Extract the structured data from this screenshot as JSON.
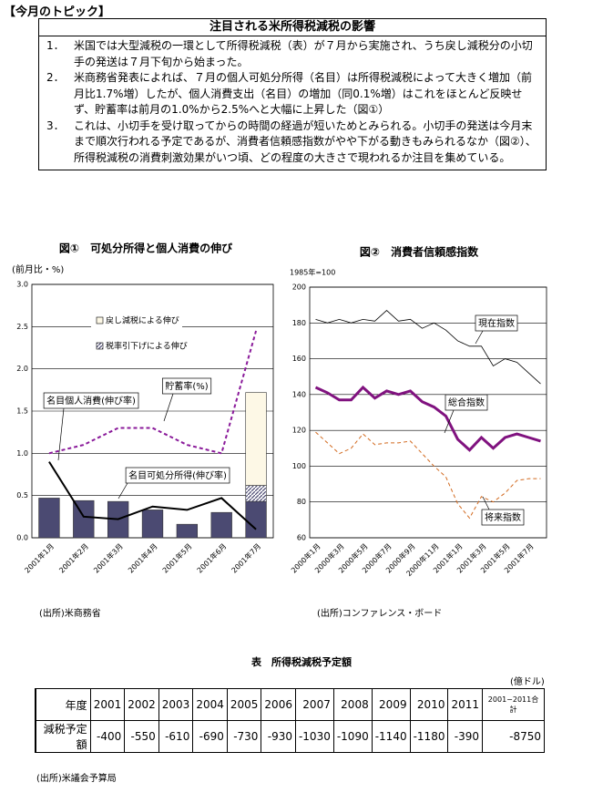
{
  "header": "【今月のトピック】",
  "title": "注目される米所得税減税の影響",
  "points": [
    {
      "number": "1．",
      "text": "米国では大型減税の一環として所得税減税（表）が７月から実施され、うち戻し減税分の小切手の発送は７月下旬から始まった。"
    },
    {
      "number": "2．",
      "text": "米商務省発表によれば、７月の個人可処分所得（名目）は所得税減税によって大きく増加（前月比1.7%増）したが、個人消費支出（名目）の増加（同0.1%増）はこれをほとんど反映せず、貯蓄率は前月の1.0%から2.5%へと大幅に上昇した（図①）"
    },
    {
      "number": "3．",
      "text": "これは、小切手を受け取ってからの時間の経過が短いためとみられる。小切手の発送は今月末まで順次行われる予定であるが、消費者信頼感指数がやや下がる動きもみられるなか（図②）、所得税減税の消費刺激効果がいつ頃、どの程度の大きさで現われるか注目を集めている。"
    }
  ],
  "chart_data": [
    {
      "type": "bar",
      "title": "図①　可処分所得と個人消費の伸び",
      "ylabel": "(前月比・%)",
      "source": "(出所)米商務省",
      "categories": [
        "2001年1月",
        "2001年2月",
        "2001年3月",
        "2001年4月",
        "2001年5月",
        "2001年6月",
        "2001年7月"
      ],
      "series": [
        {
          "name": "名目可処分所得(伸び率)",
          "type": "bar",
          "color": "#4b4a72",
          "values": [
            0.47,
            0.44,
            0.43,
            0.33,
            0.16,
            0.3,
            0.43
          ]
        },
        {
          "name": "税率引下げによる伸び",
          "type": "bar",
          "color": "#4b4a72",
          "hatch": true,
          "values": [
            null,
            null,
            null,
            null,
            null,
            null,
            0.19
          ]
        },
        {
          "name": "戻し減税による伸び",
          "type": "bar",
          "color": "#fdf8e6",
          "values": [
            null,
            null,
            null,
            null,
            null,
            null,
            1.1
          ]
        },
        {
          "name": "名目個人消費(伸び率)",
          "type": "line",
          "color": "#000000",
          "values": [
            0.9,
            0.25,
            0.22,
            0.37,
            0.33,
            0.47,
            0.1
          ]
        },
        {
          "name": "貯蓄率(%)",
          "type": "line",
          "color": "#8a1a9a",
          "dash": true,
          "values": [
            1.0,
            1.1,
            1.3,
            1.3,
            1.1,
            1.0,
            2.45
          ]
        }
      ],
      "ylim": [
        0,
        3
      ],
      "yticks": [
        {
          "value": 0,
          "label": "0.0"
        },
        0.5,
        {
          "value": 1,
          "label": "1.0"
        },
        1.5,
        {
          "value": 2,
          "label": "2.0"
        },
        2.5,
        {
          "value": 3,
          "label": "3.0"
        }
      ],
      "grid": true
    },
    {
      "type": "line",
      "title": "図②　消費者信頼感指数",
      "ylabel": "1985年=100",
      "source": "(出所)コンファレンス・ボード",
      "categories": [
        "2000年1月",
        null,
        "2000年3月",
        null,
        "2000年5月",
        null,
        "2000年7月",
        null,
        "2000年9月",
        null,
        "2000年11月",
        null,
        "2001年1月",
        null,
        "2001年3月",
        null,
        "2001年5月",
        null,
        "2001年7月",
        null
      ],
      "series": [
        {
          "name": "現在指数",
          "type": "line",
          "color": "#000000",
          "width": 0.8,
          "values": [
            182,
            180,
            182,
            180,
            182,
            181,
            187,
            181,
            182,
            177,
            180,
            176,
            170,
            167,
            167,
            156,
            160,
            158,
            152,
            146
          ]
        },
        {
          "name": "総合指数",
          "type": "line",
          "color": "#80127f",
          "width": 3,
          "values": [
            144,
            141,
            137,
            137,
            144,
            138,
            142,
            140,
            142,
            136,
            133,
            128,
            115,
            109,
            116,
            110,
            116,
            118,
            116,
            114
          ]
        },
        {
          "name": "将来指数",
          "type": "line",
          "color": "#d2691e",
          "width": 1,
          "dash": true,
          "values": [
            119,
            113,
            107,
            110,
            118,
            112,
            113,
            113,
            114,
            107,
            100,
            94,
            79,
            71,
            83,
            80,
            85,
            92,
            93,
            93
          ]
        }
      ],
      "ylim": [
        60,
        200
      ],
      "yticks": [
        60,
        80,
        100,
        120,
        140,
        160,
        180,
        200
      ],
      "grid": true
    }
  ],
  "table": {
    "title": "表　所得税減税予定額",
    "unit": "(億ドル)",
    "header": [
      "年度",
      "2001",
      "2002",
      "2003",
      "2004",
      "2005",
      "2006",
      "2007",
      "2008",
      "2009",
      "2010",
      "2011",
      "2001−2011合計"
    ],
    "rows": [
      [
        "減税予定額",
        "-400",
        "-550",
        "-610",
        "-690",
        "-730",
        "-930",
        "-1030",
        "-1090",
        "-1140",
        "-1180",
        "-390",
        "-8750"
      ]
    ],
    "source": "(出所)米議会予算局"
  }
}
